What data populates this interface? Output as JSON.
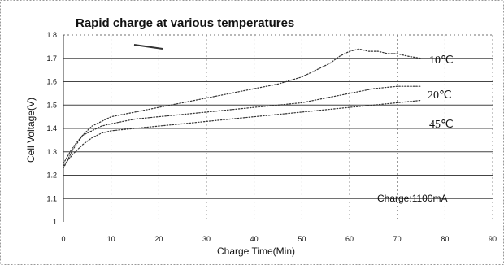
{
  "chart_data": {
    "type": "line",
    "title": "Rapid charge at various temperatures",
    "xlabel": "Charge Time(Min)",
    "ylabel": "Cell Voltage(V)",
    "xlim": [
      0,
      90
    ],
    "ylim": [
      1.0,
      1.8
    ],
    "x_ticks": [
      "0",
      "10",
      "20",
      "30",
      "40",
      "50",
      "60",
      "70",
      "80",
      "90"
    ],
    "y_ticks": [
      "1",
      "1.1",
      "1.2",
      "1.3",
      "1.4",
      "1.5",
      "1.6",
      "1.7",
      "1.8"
    ],
    "grid": true,
    "annotation": "Charge:1100mA",
    "series": [
      {
        "name": "10℃",
        "x": [
          0,
          2,
          4,
          6,
          8,
          10,
          15,
          20,
          25,
          30,
          35,
          40,
          45,
          50,
          52,
          54,
          56,
          58,
          60,
          62,
          64,
          66,
          68,
          70,
          72,
          75
        ],
        "y": [
          1.23,
          1.31,
          1.37,
          1.41,
          1.43,
          1.45,
          1.47,
          1.49,
          1.51,
          1.53,
          1.55,
          1.57,
          1.59,
          1.62,
          1.64,
          1.66,
          1.68,
          1.71,
          1.73,
          1.74,
          1.73,
          1.73,
          1.72,
          1.72,
          1.71,
          1.7
        ]
      },
      {
        "name": "20℃",
        "x": [
          0,
          2,
          4,
          6,
          8,
          10,
          15,
          20,
          25,
          30,
          35,
          40,
          45,
          50,
          55,
          60,
          65,
          70,
          75
        ],
        "y": [
          1.25,
          1.32,
          1.37,
          1.39,
          1.41,
          1.42,
          1.44,
          1.45,
          1.46,
          1.47,
          1.48,
          1.49,
          1.5,
          1.51,
          1.53,
          1.55,
          1.57,
          1.58,
          1.58
        ]
      },
      {
        "name": "45℃",
        "x": [
          0,
          2,
          4,
          6,
          8,
          10,
          15,
          20,
          25,
          30,
          35,
          40,
          45,
          50,
          55,
          60,
          65,
          70,
          75
        ],
        "y": [
          1.24,
          1.29,
          1.33,
          1.36,
          1.38,
          1.39,
          1.4,
          1.41,
          1.42,
          1.43,
          1.44,
          1.45,
          1.46,
          1.47,
          1.48,
          1.49,
          1.5,
          1.51,
          1.52
        ]
      }
    ]
  }
}
